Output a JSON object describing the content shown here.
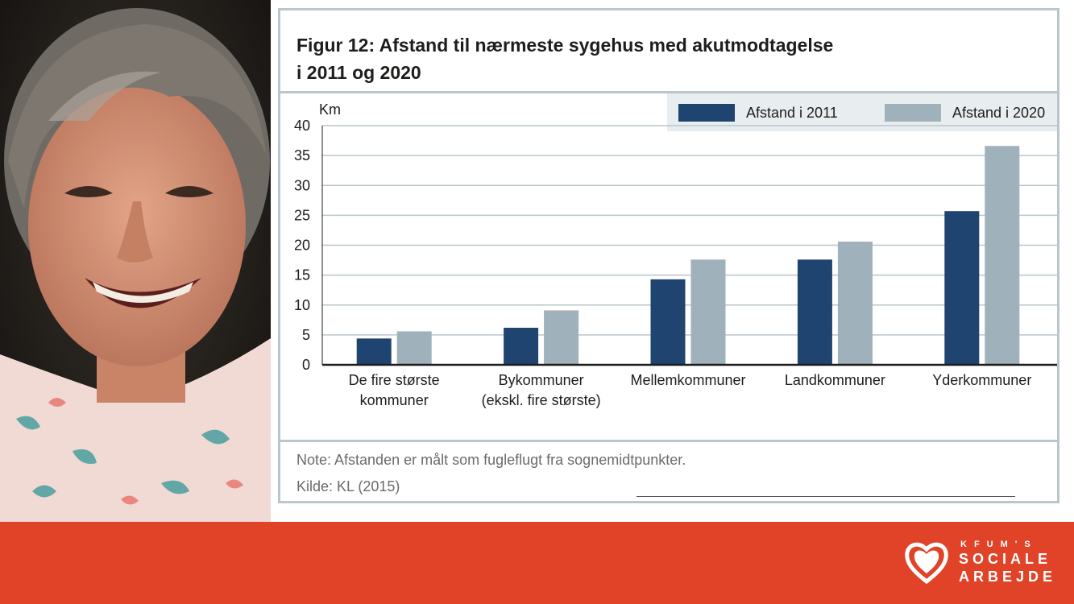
{
  "figure": {
    "title": "Figur 12: Afstand til nærmeste sygehus med akutmodtagelse\ni 2011 og 2020",
    "note": "Note: Afstanden er målt som fugleflugt fra sognemidtpunkter.",
    "source": "Kilde: KL (2015)"
  },
  "chart_data": {
    "type": "bar",
    "title": "Figur 12: Afstand til nærmeste sygehus med akutmodtagelse i 2011 og 2020",
    "ylabel": "Km",
    "xlabel": "",
    "ylim": [
      0,
      40
    ],
    "yticks": [
      0,
      5,
      10,
      15,
      20,
      25,
      30,
      35,
      40
    ],
    "grid": true,
    "legend_position": "top-right",
    "categories": [
      [
        "De fire største",
        "kommuner"
      ],
      [
        "Bykommuner",
        "(ekskl. fire største)"
      ],
      [
        "Mellemkommuner"
      ],
      [
        "Landkommuner"
      ],
      [
        "Yderkommuner"
      ]
    ],
    "series": [
      {
        "name": "Afstand i 2011",
        "color": "#1f4470",
        "values": [
          4.4,
          6.2,
          14.3,
          17.6,
          25.7
        ]
      },
      {
        "name": "Afstand i 2020",
        "color": "#9fb1bb",
        "values": [
          5.6,
          9.1,
          17.6,
          20.6,
          36.6
        ]
      }
    ]
  },
  "footer": {
    "logo_small": "KFUM'S",
    "logo_line1": "SOCIALE",
    "logo_line2": "ARBEJDE",
    "background": "#e04328"
  },
  "photo": {
    "subject": "portrait-of-smiling-woman"
  }
}
